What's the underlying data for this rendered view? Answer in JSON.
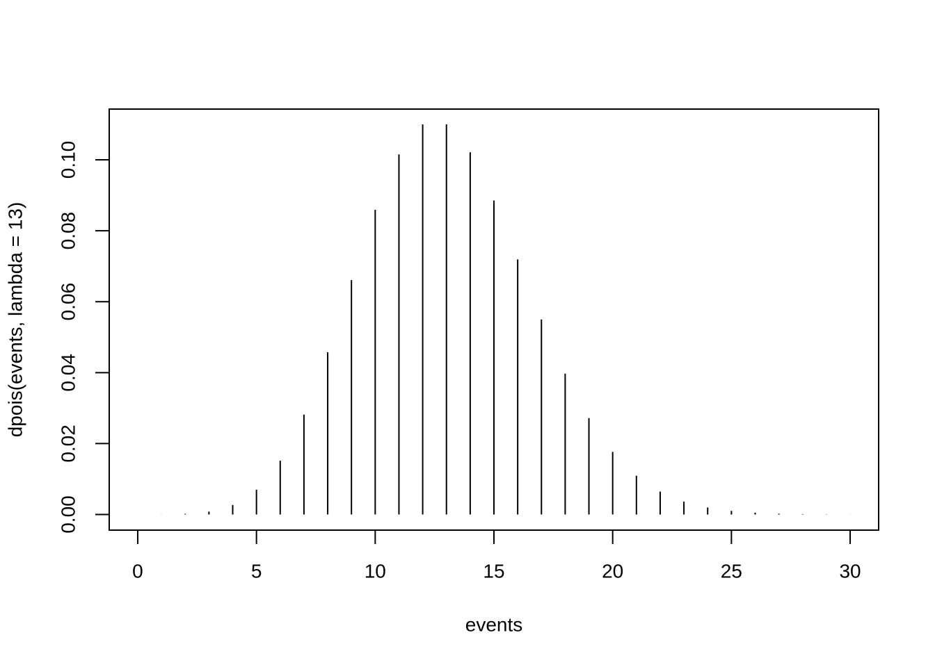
{
  "chart_data": {
    "type": "stem",
    "xlabel": "events",
    "ylabel": "dpois(events, lambda = 13)",
    "x": [
      0,
      1,
      2,
      3,
      4,
      5,
      6,
      7,
      8,
      9,
      10,
      11,
      12,
      13,
      14,
      15,
      16,
      17,
      18,
      19,
      20,
      21,
      22,
      23,
      24,
      25,
      26,
      27,
      28,
      29,
      30
    ],
    "values": [
      2.3e-06,
      2.94e-05,
      0.0001911,
      0.000828,
      0.0026911,
      0.0069969,
      0.0151599,
      0.0281541,
      0.0457504,
      0.0660839,
      0.085909,
      0.1015288,
      0.1099895,
      0.1099895,
      0.1021331,
      0.0885153,
      0.0719187,
      0.0549966,
      0.0397198,
      0.0271767,
      0.0176649,
      0.0109353,
      0.0064618,
      0.0036523,
      0.0019783,
      0.0010287,
      0.0005143,
      0.0002477,
      0.000115,
      5.15e-05,
      2.23e-05
    ],
    "color": "#000000",
    "xlim": [
      -1.2,
      31.2
    ],
    "ylim": [
      -0.0044,
      0.1143
    ],
    "xticks": [
      0,
      5,
      10,
      15,
      20,
      25,
      30
    ],
    "yticks": [
      {
        "value": 0,
        "label": "0.00"
      },
      {
        "value": 0.02,
        "label": "0.02"
      },
      {
        "value": 0.04,
        "label": "0.04"
      },
      {
        "value": 0.06,
        "label": "0.06"
      },
      {
        "value": 0.08,
        "label": "0.08"
      },
      {
        "value": 0.1,
        "label": "0.10"
      }
    ],
    "grid": false
  }
}
